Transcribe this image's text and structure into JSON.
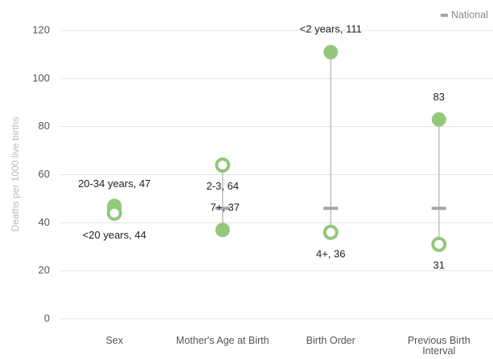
{
  "chart_data": {
    "type": "dot-range",
    "y_label": "Deaths per 1000 live births",
    "categories": [
      "Sex",
      "Mother's Age at Birth",
      "Birth Order",
      "Previous Birth Interval"
    ],
    "ylim": [
      0,
      120
    ],
    "yticks": [
      0,
      20,
      40,
      60,
      80,
      100,
      120
    ],
    "grid": true,
    "legend": "top-right",
    "range_line_color": "#bfbfbf",
    "series": [
      {
        "marker": "filled",
        "color": "#93c87b",
        "values": [
          47,
          37,
          111,
          83
        ],
        "value_labels": [
          "20-34 years, 47",
          "7+, 37",
          "<2 years, 111",
          "83"
        ]
      },
      {
        "marker": "ring",
        "color": "#93c87b",
        "values": [
          44,
          64,
          36,
          31
        ],
        "value_labels": [
          "<20 years, 44",
          "2-3, 64",
          "4+, 36",
          "31"
        ]
      }
    ],
    "national": {
      "name": "National",
      "color": "#a6a6a6",
      "values": [
        46,
        46,
        46,
        46
      ]
    }
  }
}
